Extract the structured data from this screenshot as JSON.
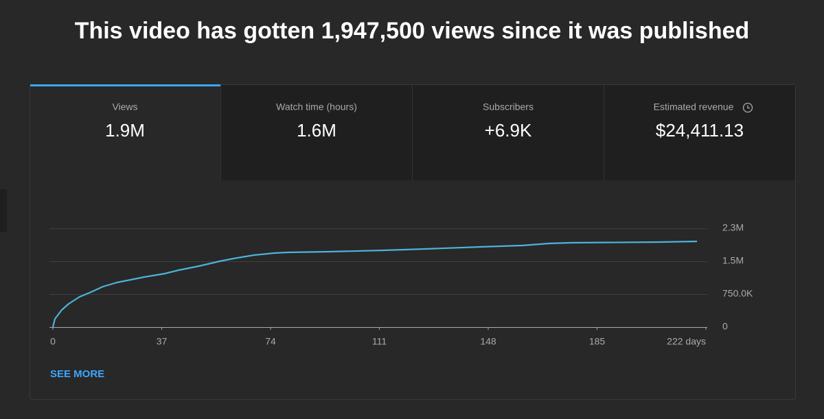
{
  "title": "This video has gotten 1,947,500 views since it was published",
  "tabs": [
    {
      "label": "Views",
      "value": "1.9M"
    },
    {
      "label": "Watch time (hours)",
      "value": "1.6M"
    },
    {
      "label": "Subscribers",
      "value": "+6.9K"
    },
    {
      "label": "Estimated revenue",
      "value": "$24,411.13"
    }
  ],
  "see_more": "SEE MORE",
  "chart_data": {
    "type": "line",
    "x": [
      0,
      0.7,
      3,
      5.4,
      9,
      12.4,
      17,
      21.7,
      26.4,
      31,
      38,
      42.7,
      49.7,
      56.7,
      61.4,
      68.4,
      75.4,
      80,
      94,
      112.7,
      126.7,
      145.4,
      159.4,
      168.7,
      175.8,
      206,
      219
    ],
    "values": [
      0,
      187500,
      390000,
      531000,
      687500,
      781000,
      922000,
      1015000,
      1078000,
      1140000,
      1219000,
      1297000,
      1390000,
      1500000,
      1562000,
      1640000,
      1687000,
      1703000,
      1719000,
      1750000,
      1781000,
      1828000,
      1859000,
      1906000,
      1922000,
      1937500,
      1953000
    ],
    "color": "#4cb4da",
    "xlim": [
      0,
      222
    ],
    "xticks": [
      0,
      37,
      74,
      111,
      148,
      185,
      {
        "value": 222,
        "label": "222 days"
      }
    ],
    "ylim": [
      0,
      2250000
    ],
    "yticks": [
      0,
      {
        "value": 750000,
        "label": "750.0K"
      },
      {
        "value": 1500000,
        "label": "1.5M"
      },
      {
        "value": 2250000,
        "label": "2.3M"
      }
    ],
    "grid": true
  }
}
